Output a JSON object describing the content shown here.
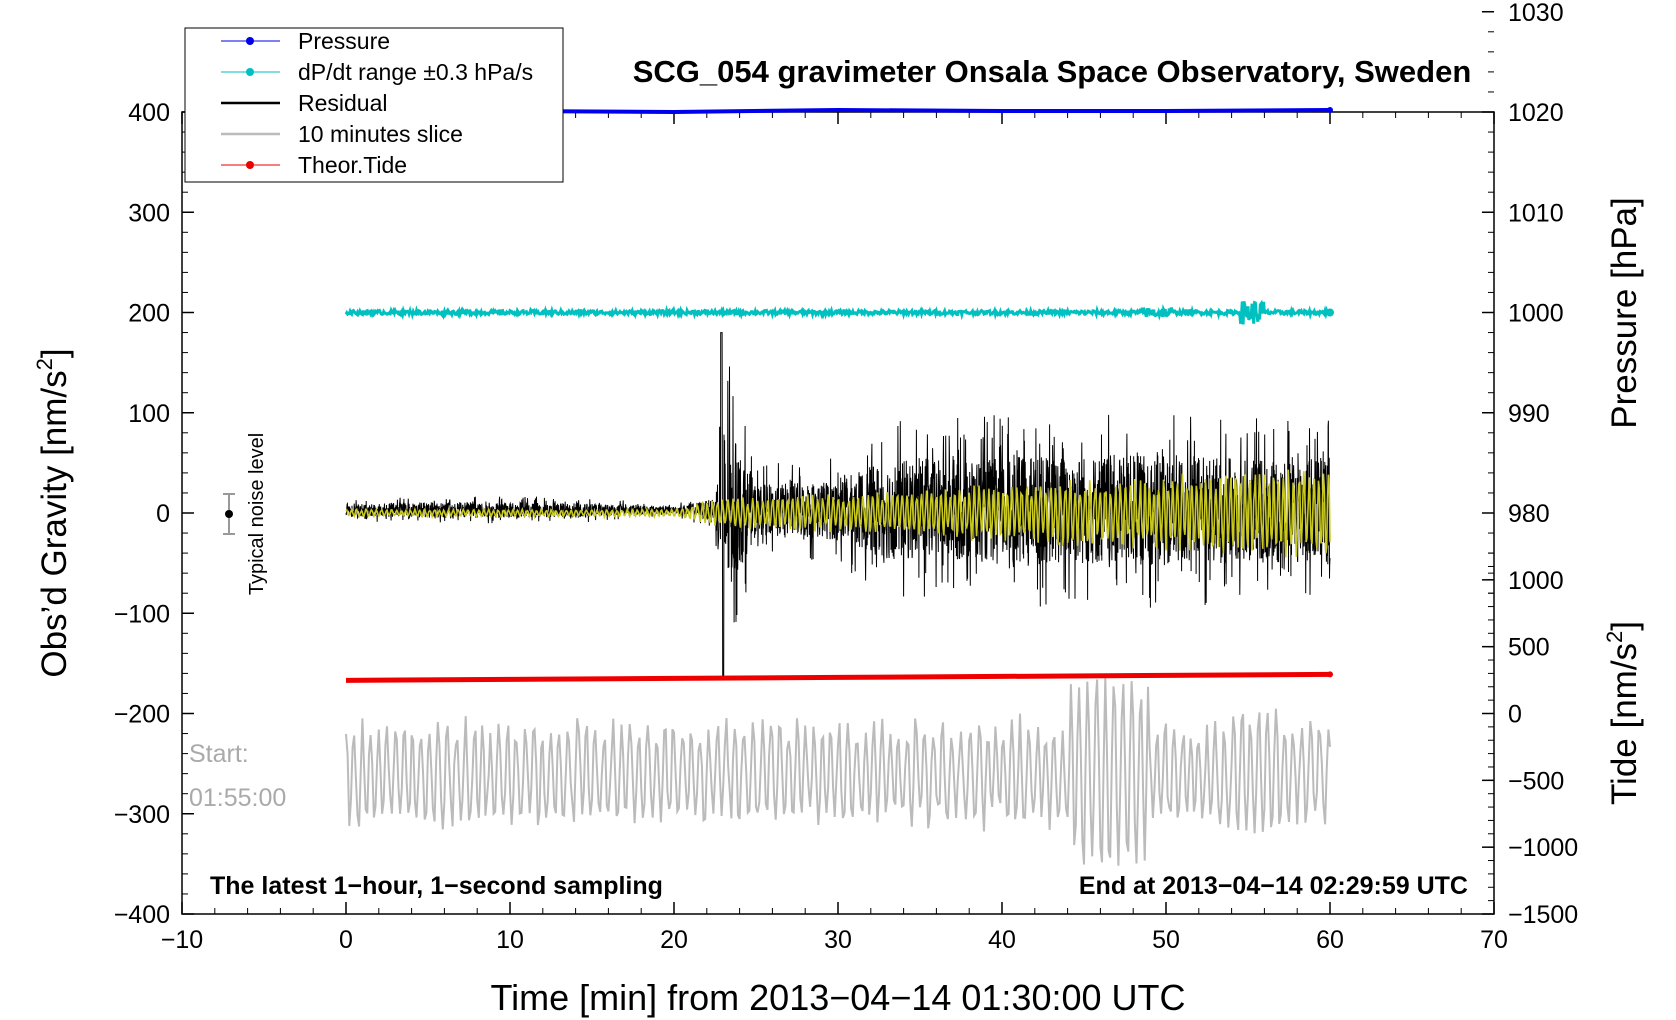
{
  "chart_data": {
    "type": "line",
    "title": "SCG_054 gravimeter Onsala Space Observatory, Sweden",
    "xlabel": "Time [min] from 2013−04−14 01:30:00 UTC",
    "ylabel_left_main": "Obs’d Gravity [nm/s",
    "ylabel_left_sup": "2",
    "ylabel_left_end": "]",
    "ylabel_right_pressure": "Pressure [hPa]",
    "ylabel_right_tide_main": "Tide [nm/s",
    "ylabel_right_tide_sup": "2",
    "ylabel_right_tide_end": "]",
    "xlim": [
      -10,
      70
    ],
    "ylim": [
      -400,
      400
    ],
    "x_ticks": [
      -10,
      0,
      10,
      20,
      30,
      40,
      50,
      60,
      70
    ],
    "x_tick_labels": [
      "−10",
      "0",
      "10",
      "20",
      "30",
      "40",
      "50",
      "60",
      "70"
    ],
    "y_ticks": [
      -400,
      -300,
      -200,
      -100,
      0,
      100,
      200,
      300,
      400
    ],
    "y_tick_labels": [
      "−400",
      "−300",
      "−200",
      "−100",
      "0",
      "100",
      "200",
      "300",
      "400"
    ],
    "pressure_axis": {
      "ylim": [
        970,
        1030
      ],
      "ticks": [
        980,
        990,
        1000,
        1010,
        1020,
        1030
      ],
      "tick_labels": [
        "980",
        "990",
        "1000",
        "1010",
        "1020",
        "1030"
      ]
    },
    "tide_axis": {
      "ylim": [
        -1500,
        1500
      ],
      "ticks": [
        -1500,
        -1000,
        -500,
        0,
        500,
        1000
      ],
      "tick_labels": [
        "−1500",
        "−1000",
        "−500",
        "0",
        "500",
        "1000"
      ]
    },
    "legend": {
      "placement": "top-left",
      "entries": [
        {
          "label": "Pressure",
          "color": "#0000ee",
          "marker": true
        },
        {
          "label": "dP/dt range ±0.3 hPa/s",
          "color": "#00c0c0",
          "marker": true
        },
        {
          "label": "Residual",
          "color": "#000000",
          "marker": false
        },
        {
          "label": "10 minutes slice",
          "color": "#bbbbbb",
          "marker": false
        },
        {
          "label": "Theor.Tide",
          "color": "#ee0000",
          "marker": true
        }
      ]
    },
    "series": [
      {
        "name": "Pressure",
        "color": "#0000ee",
        "axis": "pressure",
        "x": [
          0,
          10,
          20,
          30,
          40,
          50,
          60
        ],
        "values": [
          1020.0,
          1020.1,
          1020.0,
          1020.2,
          1020.1,
          1020.1,
          1020.2
        ]
      },
      {
        "name": "dP/dt range ±0.3 hPa/s",
        "color": "#00c0c0",
        "axis": "gravity",
        "baseline": 200,
        "x": [
          0,
          60
        ],
        "values": [
          200,
          200
        ],
        "spread": 2
      },
      {
        "name": "Residual",
        "color": "#000000",
        "axis": "gravity",
        "baseline": 3,
        "x": [
          0,
          5,
          10,
          15,
          20,
          22.5,
          23,
          25,
          30,
          33,
          40,
          45,
          50,
          55,
          60
        ],
        "amplitude": [
          12,
          14,
          14,
          12,
          6,
          20,
          170,
          45,
          55,
          90,
          95,
          100,
          100,
          95,
          100
        ]
      },
      {
        "name": "Residual (smoothed)",
        "color": "#c8c820",
        "axis": "gravity",
        "baseline": 0,
        "x": [
          0,
          20,
          22.5,
          30,
          40,
          50,
          60
        ],
        "amplitude": [
          4,
          4,
          15,
          20,
          30,
          40,
          50
        ]
      },
      {
        "name": "Theor.Tide",
        "color": "#ee0000",
        "axis": "gravity",
        "x": [
          0,
          10,
          20,
          30,
          40,
          50,
          60
        ],
        "values": [
          -167,
          -166,
          -165,
          -164,
          -163,
          -162,
          -161
        ]
      },
      {
        "name": "10 minutes slice",
        "color": "#bbbbbb",
        "axis": "gravity",
        "baseline": -260,
        "x": [
          0,
          60
        ],
        "typical_range": [
          -330,
          -210
        ],
        "extremes": [
          -370,
          -145
        ]
      }
    ],
    "noise_marker": {
      "x": -7,
      "y": 0,
      "err": 20,
      "label": "Typical noise level"
    },
    "annotations": {
      "start_label": "Start:",
      "start_time": "01:55:00",
      "bottom_left": "The latest 1−hour, 1−second sampling",
      "bottom_right": "End at 2013−04−14 02:29:59 UTC"
    }
  }
}
